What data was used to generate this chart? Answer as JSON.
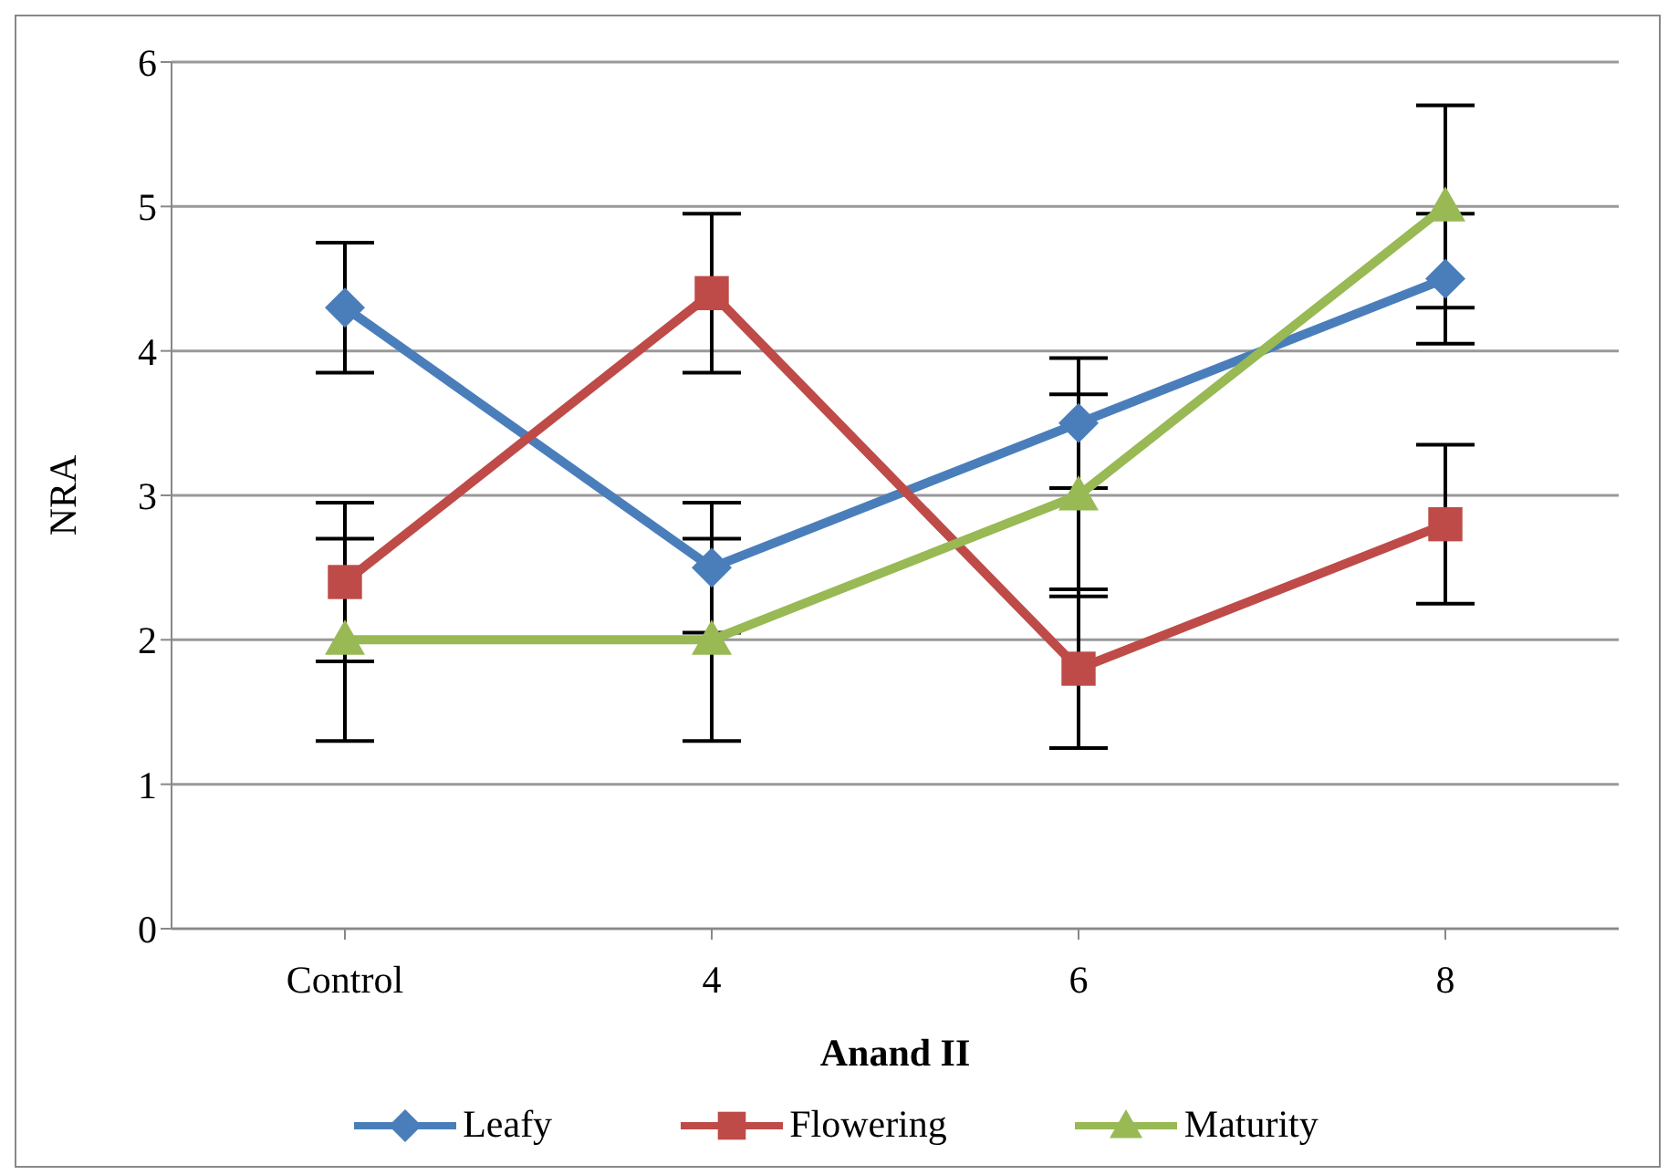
{
  "chart_data": {
    "type": "line",
    "xlabel": "Anand II",
    "ylabel": "NRA",
    "categories": [
      "Control",
      "4",
      "6",
      "8"
    ],
    "series": [
      {
        "name": "Leafy",
        "color": "#4a7ebb",
        "marker": "diamond",
        "values": [
          4.3,
          2.5,
          3.5,
          4.5
        ],
        "errors": [
          0.45,
          0.45,
          0.45,
          0.45
        ]
      },
      {
        "name": "Flowering",
        "color": "#be4b48",
        "marker": "square",
        "values": [
          2.4,
          4.4,
          1.8,
          2.8
        ],
        "errors": [
          0.55,
          0.55,
          0.55,
          0.55
        ]
      },
      {
        "name": "Maturity",
        "color": "#98b954",
        "marker": "triangle",
        "values": [
          2,
          2,
          3,
          5
        ],
        "errors": [
          0.7,
          0.7,
          0.7,
          0.7
        ]
      }
    ],
    "ylim": [
      0,
      6
    ],
    "yticks": [
      0,
      1,
      2,
      3,
      4,
      5,
      6
    ],
    "grid": "y",
    "legend": "bottom"
  }
}
